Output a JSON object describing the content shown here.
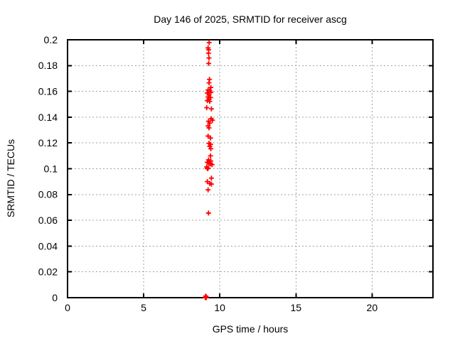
{
  "colors": {
    "background": "#ffffff",
    "axis": "#000000",
    "grid": "#a0a0a0",
    "marker": "#ff0000",
    "text": "#000000"
  },
  "chart_data": {
    "type": "scatter",
    "title": "Day 146 of 2025, SRMTID for receiver ascg",
    "xlabel": "GPS time / hours",
    "ylabel": "SRMTID / TECUs",
    "xlim": [
      0,
      24
    ],
    "ylim": [
      0,
      0.2
    ],
    "grid": true,
    "legend_position": "none",
    "marker": {
      "shape": "plus",
      "color": "#ff0000",
      "size": 7
    },
    "xticks": {
      "values": [
        0,
        5,
        10,
        15,
        20
      ],
      "labels": [
        "0",
        "5",
        "10",
        "15",
        "20"
      ]
    },
    "yticks": {
      "values": [
        0,
        0.02,
        0.04,
        0.06,
        0.08,
        0.1,
        0.12,
        0.14,
        0.16,
        0.18,
        0.2
      ],
      "labels": [
        "0",
        "0.02",
        "0.04",
        "0.06",
        "0.08",
        "0.1",
        "0.12",
        "0.14",
        "0.16",
        "0.18",
        "0.2"
      ]
    },
    "series": [
      {
        "name": "SRMTID",
        "points": [
          [
            9.3,
            0.1978
          ],
          [
            9.23,
            0.1937
          ],
          [
            9.27,
            0.1922
          ],
          [
            9.26,
            0.1896
          ],
          [
            9.29,
            0.1859
          ],
          [
            9.27,
            0.1816
          ],
          [
            9.32,
            0.1693
          ],
          [
            9.29,
            0.1666
          ],
          [
            9.41,
            0.163
          ],
          [
            9.23,
            0.1611
          ],
          [
            9.34,
            0.1605
          ],
          [
            9.41,
            0.1592
          ],
          [
            9.18,
            0.1587
          ],
          [
            9.29,
            0.1574
          ],
          [
            9.23,
            0.1556
          ],
          [
            9.39,
            0.1552
          ],
          [
            9.29,
            0.1537
          ],
          [
            9.18,
            0.1528
          ],
          [
            9.34,
            0.1522
          ],
          [
            9.14,
            0.1473
          ],
          [
            9.45,
            0.1464
          ],
          [
            9.43,
            0.1388
          ],
          [
            9.52,
            0.1376
          ],
          [
            9.26,
            0.1368
          ],
          [
            9.34,
            0.1354
          ],
          [
            9.23,
            0.1332
          ],
          [
            9.29,
            0.1317
          ],
          [
            9.23,
            0.1253
          ],
          [
            9.39,
            0.1238
          ],
          [
            9.29,
            0.1197
          ],
          [
            9.39,
            0.1189
          ],
          [
            9.34,
            0.1174
          ],
          [
            9.41,
            0.1155
          ],
          [
            9.39,
            0.11
          ],
          [
            9.26,
            0.1069
          ],
          [
            9.41,
            0.106
          ],
          [
            9.18,
            0.105
          ],
          [
            9.29,
            0.1041
          ],
          [
            9.39,
            0.1037
          ],
          [
            9.49,
            0.1032
          ],
          [
            9.14,
            0.1014
          ],
          [
            9.23,
            0.1004
          ],
          [
            9.18,
            0.1001
          ],
          [
            9.45,
            0.0927
          ],
          [
            9.18,
            0.09
          ],
          [
            9.34,
            0.0885
          ],
          [
            9.45,
            0.0881
          ],
          [
            9.23,
            0.0836
          ],
          [
            9.26,
            0.0656
          ],
          [
            9.05,
            0.0
          ],
          [
            9.08,
            0.0
          ],
          [
            9.11,
            0.0
          ],
          [
            9.07,
            0.0012
          ],
          [
            9.1,
            0.0008
          ]
        ]
      }
    ]
  }
}
